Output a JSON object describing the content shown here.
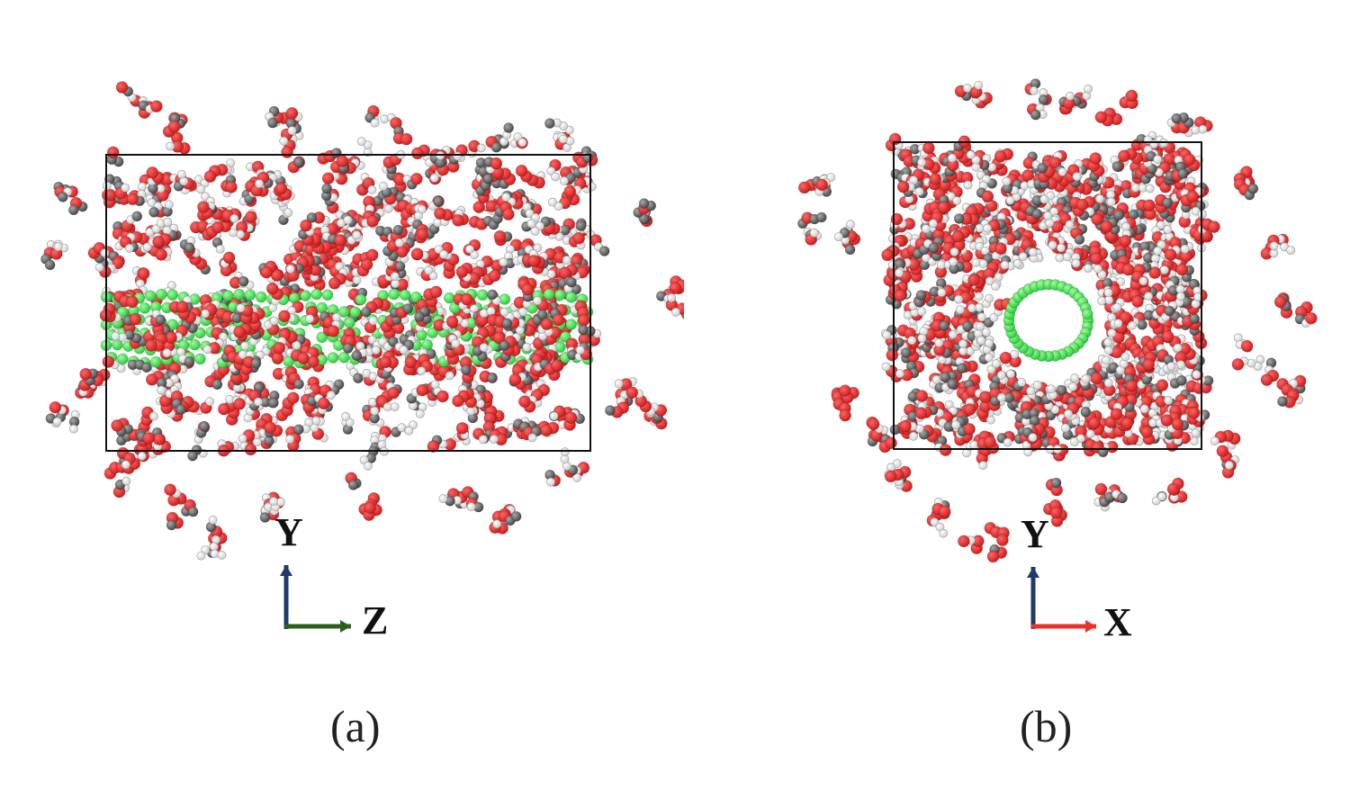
{
  "figure": {
    "colors": {
      "oxygen": "#cc1f1f",
      "oxygen_highlight": "#ff6666",
      "hydrogen": "#f2f2f2",
      "hydrogen_edge": "#9a9a9a",
      "carbon": "#6e6e6e",
      "nanotube": "#2ecc40",
      "nanotube_highlight": "#9dff9d",
      "box": "#111111",
      "axis_y": "#1f3a6b",
      "axis_z": "#2e5e1e",
      "axis_x": "#e8332a"
    },
    "panels": [
      {
        "id": "a",
        "view": "side",
        "caption": "(a)",
        "axes": {
          "vertical": "Y",
          "horizontal": "Z"
        }
      },
      {
        "id": "b",
        "view": "end",
        "caption": "(b)",
        "axes": {
          "vertical": "Y",
          "horizontal": "X"
        }
      }
    ]
  }
}
